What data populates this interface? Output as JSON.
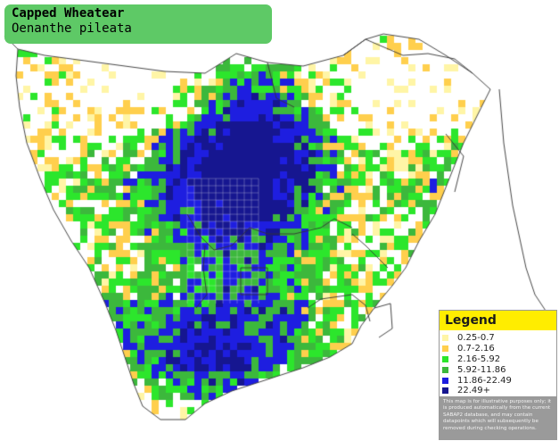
{
  "title": {
    "common_name": "Capped Wheatear",
    "scientific_name": "Oenanthe pileata",
    "box_color": "#5ec966"
  },
  "legend": {
    "heading": "Legend",
    "heading_color": "#ffed00",
    "classes": [
      {
        "label": "0.25-0.7",
        "color": "#fff5a6"
      },
      {
        "label": "0.7-2.16",
        "color": "#ffcf4d"
      },
      {
        "label": "2.16-5.92",
        "color": "#2ce62c"
      },
      {
        "label": "5.92-11.86",
        "color": "#3cb83c"
      },
      {
        "label": "11.86-22.49",
        "color": "#1e1ee0"
      },
      {
        "label": "22.49+",
        "color": "#161690"
      }
    ],
    "disclaimer": "This map is for illustrative purposes only; it is produced automatically from the current SABAP2 database, and may contain datapoints which will subsequently be removed during checking operations."
  },
  "map": {
    "region": "southern Africa",
    "land_color": "#ffffff",
    "border_color": "#333333"
  }
}
